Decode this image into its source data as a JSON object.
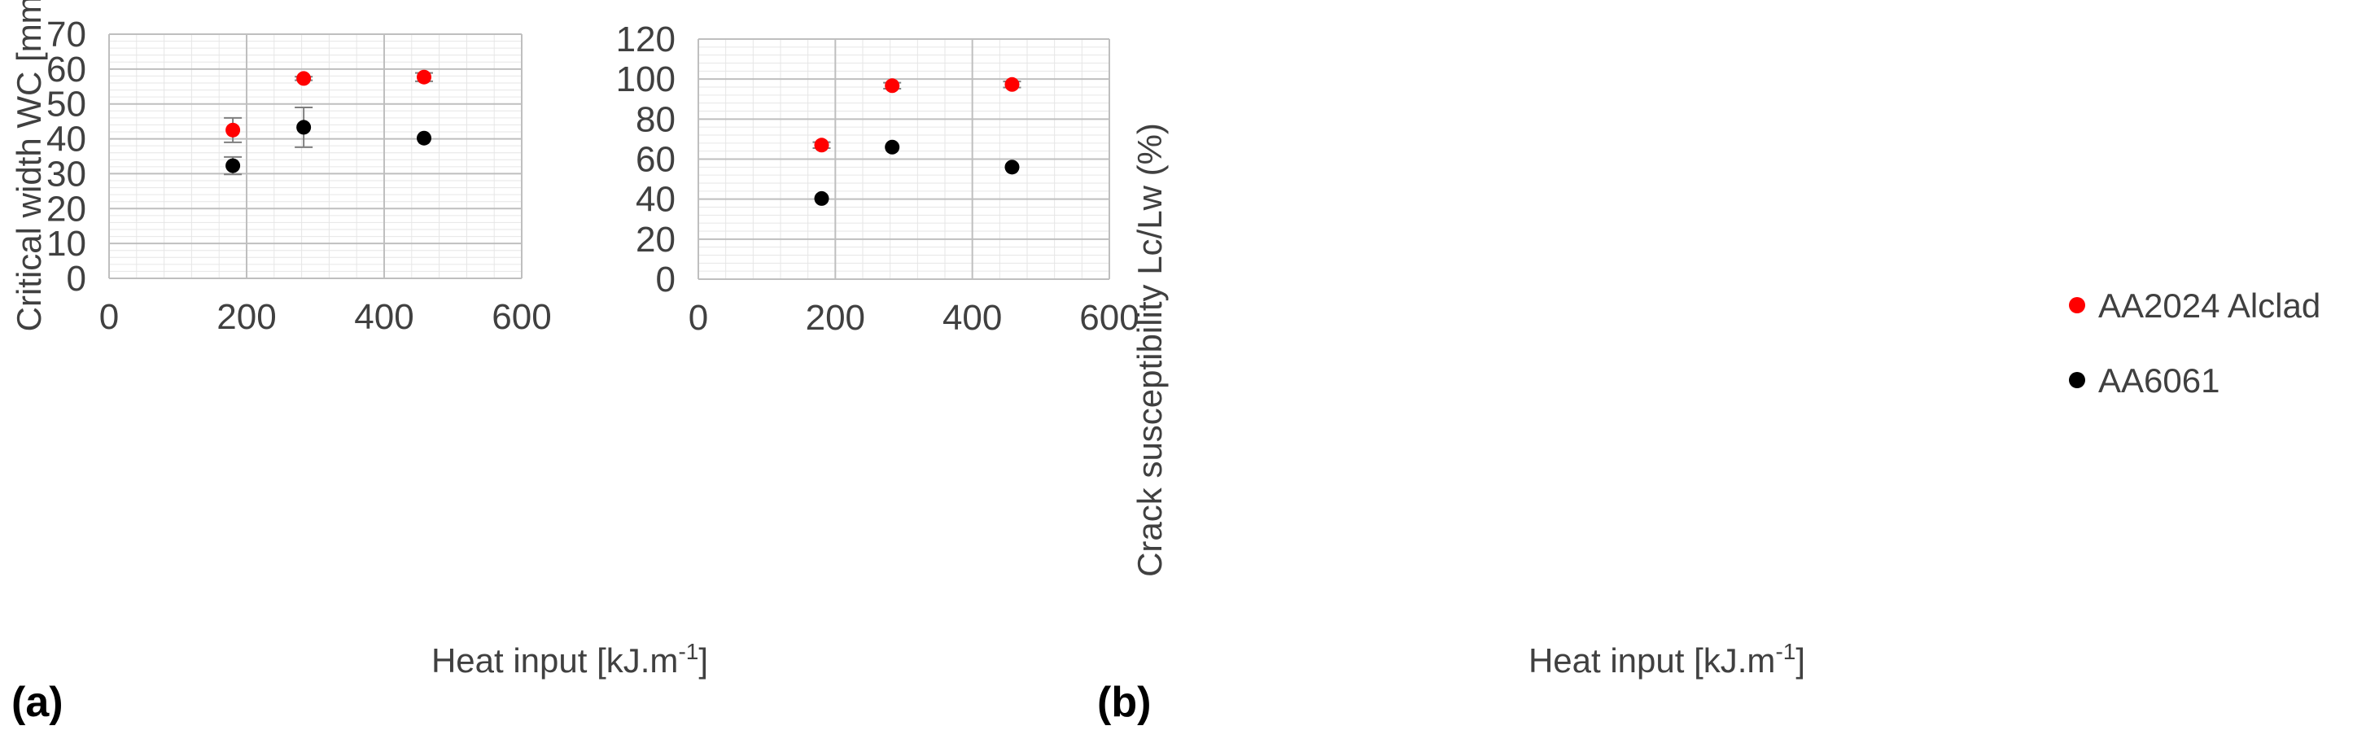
{
  "panels": [
    {
      "label": "(a)"
    },
    {
      "label": "(b)"
    }
  ],
  "legend": {
    "position": "right",
    "entries": [
      {
        "name": "AA2024 Alclad",
        "color": "#ff0000"
      },
      {
        "name": "AA6061",
        "color": "#000000"
      }
    ]
  },
  "chart_data": [
    {
      "type": "scatter",
      "panel": "(a)",
      "xlabel_main": "Heat input [kJ.m",
      "xlabel_sup": "-1",
      "xlabel_close": "]",
      "ylabel": "Critical width  WC [mm]",
      "xlim": [
        0,
        600
      ],
      "ylim": [
        0,
        70
      ],
      "xticks": [
        "0",
        "200",
        "400",
        "600"
      ],
      "yticks": [
        "0",
        "10",
        "20",
        "30",
        "40",
        "50",
        "60",
        "70"
      ],
      "grid": true,
      "minor_grid": true,
      "series": [
        {
          "name": "AA2024 Alclad",
          "color": "#ff0000",
          "points": [
            {
              "x": 180,
              "y": 42.5,
              "err": 3.5
            },
            {
              "x": 283,
              "y": 57.3,
              "err": 0.5
            },
            {
              "x": 458,
              "y": 57.7,
              "err": 1.2
            }
          ]
        },
        {
          "name": "AA6061",
          "color": "#000000",
          "points": [
            {
              "x": 180,
              "y": 32.3,
              "err": 2.5
            },
            {
              "x": 283,
              "y": 43.3,
              "err": 5.7
            },
            {
              "x": 458,
              "y": 40.2,
              "err": 0
            }
          ]
        }
      ]
    },
    {
      "type": "scatter",
      "panel": "(b)",
      "xlabel_main": "Heat input [kJ.m",
      "xlabel_sup": "-1",
      "xlabel_close": "]",
      "ylabel": "Crack susceptibility  Lc/Lw (%)",
      "xlim": [
        0,
        600
      ],
      "ylim": [
        0,
        120
      ],
      "xticks": [
        "0",
        "200",
        "400",
        "600"
      ],
      "yticks": [
        "0",
        "20",
        "40",
        "60",
        "80",
        "100",
        "120"
      ],
      "grid": true,
      "minor_grid": true,
      "series": [
        {
          "name": "AA2024 Alclad",
          "color": "#ff0000",
          "points": [
            {
              "x": 180,
              "y": 67,
              "err": 1.5
            },
            {
              "x": 283,
              "y": 96.7,
              "err": 1.5
            },
            {
              "x": 458,
              "y": 97.3,
              "err": 1.5
            }
          ]
        },
        {
          "name": "AA6061",
          "color": "#000000",
          "points": [
            {
              "x": 180,
              "y": 40.3,
              "err": 0
            },
            {
              "x": 283,
              "y": 66,
              "err": 0
            },
            {
              "x": 458,
              "y": 56,
              "err": 0
            }
          ]
        }
      ]
    }
  ]
}
